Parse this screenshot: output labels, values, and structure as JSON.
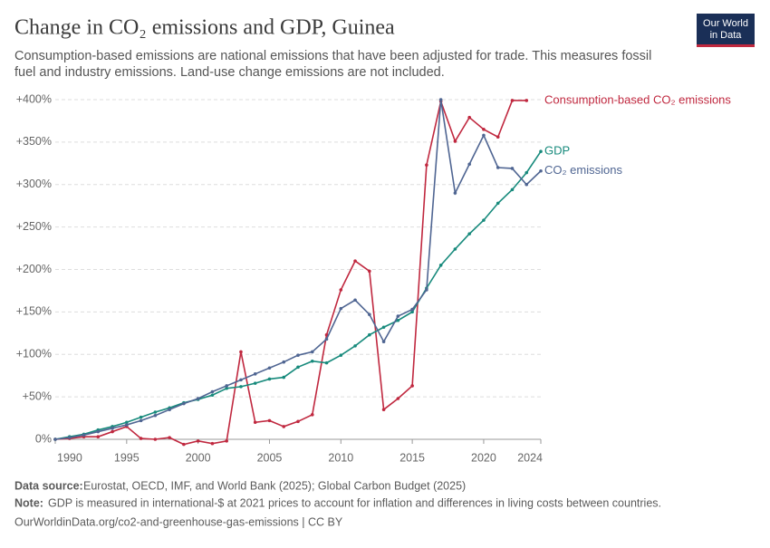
{
  "chart_data": {
    "type": "line",
    "title": "Change in CO₂ emissions and GDP, Guinea",
    "subtitle": [
      "Consumption-based emissions are national emissions that have been adjusted for trade. This measures fossil",
      "fuel and industry emissions. Land-use change emissions are not included."
    ],
    "logo": [
      "Our World",
      "in Data"
    ],
    "source_label": "Data source:",
    "source": "Eurostat, OECD, IMF, and World Bank (2025); Global Carbon Budget (2025)",
    "note_label": "Note:",
    "note": "GDP is measured in international-$ at 2021 prices to account for inflation and differences in living costs between countries.",
    "url": "OurWorldinData.org/co2-and-greenhouse-gas-emissions | CC BY",
    "x": [
      1990,
      1991,
      1992,
      1993,
      1994,
      1995,
      1996,
      1997,
      1998,
      1999,
      2000,
      2001,
      2002,
      2003,
      2004,
      2005,
      2006,
      2007,
      2008,
      2009,
      2010,
      2011,
      2012,
      2013,
      2014,
      2015,
      2016,
      2017,
      2018,
      2019,
      2020,
      2021,
      2022,
      2023,
      2024
    ],
    "xlim": [
      1990,
      2024
    ],
    "xticks": [
      1990,
      1995,
      2000,
      2005,
      2010,
      2015,
      2020,
      2024
    ],
    "ylim": [
      0,
      400
    ],
    "yticks": [
      {
        "value": 0,
        "label": "0%"
      },
      {
        "value": 50,
        "label": "+50%"
      },
      {
        "value": 100,
        "label": "+100%"
      },
      {
        "value": 150,
        "label": "+150%"
      },
      {
        "value": 200,
        "label": "+200%"
      },
      {
        "value": 250,
        "label": "+250%"
      },
      {
        "value": 300,
        "label": "+300%"
      },
      {
        "value": 350,
        "label": "+350%"
      },
      {
        "value": 400,
        "label": "+400%"
      }
    ],
    "grid": true,
    "series": [
      {
        "name": "Consumption-based CO₂ emissions",
        "color": "#c0283f",
        "values": [
          0,
          1,
          3,
          3,
          9,
          15,
          1,
          0,
          2,
          -6,
          -2,
          -5,
          -2,
          103,
          20,
          22,
          15,
          21,
          29,
          123,
          176,
          210,
          198,
          35,
          48,
          63,
          323,
          398,
          351,
          379,
          365,
          356,
          399,
          399,
          null
        ]
      },
      {
        "name": "GDP",
        "color": "#178a7c",
        "values": [
          0,
          3,
          6,
          11,
          15,
          20,
          26,
          32,
          37,
          43,
          47,
          52,
          60,
          62,
          66,
          71,
          73,
          85,
          92,
          90,
          99,
          110,
          123,
          132,
          140,
          150,
          178,
          205,
          224,
          242,
          258,
          278,
          294,
          314,
          339
        ]
      },
      {
        "name": "CO₂ emissions",
        "color": "#4f6592",
        "values": [
          0,
          2,
          5,
          9,
          13,
          17,
          22,
          28,
          35,
          42,
          48,
          56,
          63,
          70,
          77,
          84,
          91,
          99,
          103,
          118,
          154,
          164,
          147,
          115,
          145,
          153,
          176,
          400,
          290,
          324,
          358,
          320,
          319,
          300,
          316
        ]
      }
    ]
  }
}
